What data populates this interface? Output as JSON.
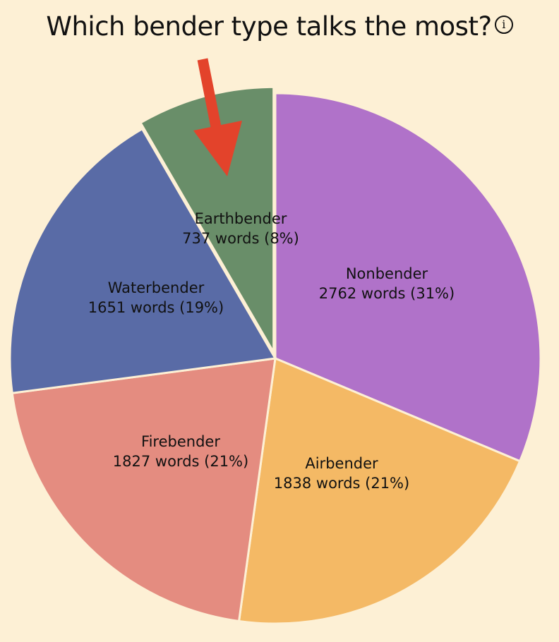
{
  "title": "Which bender type talks the most?",
  "info_icon": "info-circle-icon",
  "chart_data": {
    "type": "pie",
    "title": "Which bender type talks the most?",
    "unit": "words",
    "slices": [
      {
        "name": "Nonbender",
        "value": 2762,
        "percent_label": "31%",
        "color": "#b072c9",
        "label": "2762 words (31%)"
      },
      {
        "name": "Airbender",
        "value": 1838,
        "percent_label": "21%",
        "color": "#f4b965",
        "label": "1838 words (21%)"
      },
      {
        "name": "Firebender",
        "value": 1827,
        "percent_label": "21%",
        "color": "#e48c80",
        "label": "1827 words (21%)"
      },
      {
        "name": "Waterbender",
        "value": 1651,
        "percent_label": "19%",
        "color": "#596ba6",
        "label": "1651 words (19%)"
      },
      {
        "name": "Earthbender",
        "value": 737,
        "percent_label": "8%",
        "color": "#698e69",
        "label": "737 words (8%)",
        "highlighted": true
      }
    ],
    "start_angle": "12 o'clock",
    "direction": "clockwise",
    "annotation": {
      "type": "arrow",
      "points_to": "Earthbender",
      "color": "#e3432b"
    }
  }
}
